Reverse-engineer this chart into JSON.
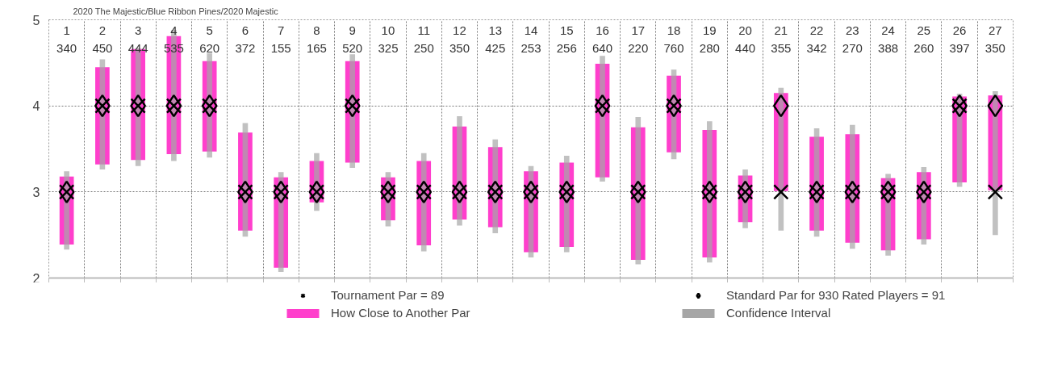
{
  "chart_data": {
    "type": "bar",
    "title": "2020 The Majestic/Blue Ribbon Pines/2020 Majestic",
    "categories": [
      "1\n340",
      "2\n450",
      "3\n444",
      "4\n535",
      "5\n620",
      "6\n372",
      "7\n155",
      "8\n165",
      "9\n520",
      "10\n325",
      "11\n250",
      "12\n350",
      "13\n425",
      "14\n253",
      "15\n256",
      "16\n640",
      "17\n220",
      "18\n760",
      "19\n280",
      "20\n440",
      "21\n355",
      "22\n342",
      "23\n270",
      "24\n388",
      "25\n260",
      "26\n397",
      "27\n350"
    ],
    "series": [
      {
        "name": "How Close to Another Par",
        "color": "#ff3fcc",
        "base": [
          2.39,
          3.32,
          3.37,
          3.44,
          3.47,
          2.55,
          2.12,
          2.88,
          3.34,
          2.67,
          2.38,
          2.68,
          2.59,
          2.3,
          2.36,
          3.17,
          2.21,
          3.46,
          2.24,
          2.65,
          3.01,
          2.55,
          2.41,
          2.32,
          2.45,
          3.11,
          3.02
        ],
        "values": [
          0.79,
          1.13,
          1.29,
          1.37,
          1.05,
          1.14,
          1.05,
          0.48,
          1.18,
          0.5,
          0.98,
          1.08,
          0.93,
          0.94,
          0.98,
          1.32,
          1.54,
          0.89,
          1.48,
          0.54,
          1.14,
          1.09,
          1.26,
          0.84,
          0.78,
          1.0,
          1.1
        ]
      },
      {
        "name": "Confidence Interval",
        "color": "#a6a6a6",
        "base": [
          2.33,
          3.26,
          3.3,
          3.36,
          3.4,
          2.48,
          2.07,
          2.78,
          3.28,
          2.6,
          2.31,
          2.61,
          2.52,
          2.24,
          2.3,
          3.12,
          2.16,
          3.38,
          2.18,
          2.58,
          2.55,
          2.48,
          2.34,
          2.26,
          2.39,
          3.06,
          2.5
        ],
        "values": [
          0.91,
          1.28,
          1.37,
          1.52,
          1.21,
          1.32,
          1.16,
          0.67,
          1.32,
          0.63,
          1.14,
          1.27,
          1.09,
          1.06,
          1.12,
          1.46,
          1.71,
          1.04,
          1.64,
          0.68,
          1.66,
          1.26,
          1.44,
          0.95,
          0.9,
          1.08,
          1.67
        ]
      },
      {
        "name": "Tournament Par = 89",
        "type": "scatter",
        "marker": "cross",
        "color": "#000000",
        "values": [
          3,
          4,
          4,
          4,
          4,
          3,
          3,
          3,
          4,
          3,
          3,
          3,
          3,
          3,
          3,
          4,
          3,
          4,
          3,
          3,
          3,
          3,
          3,
          3,
          3,
          4,
          3
        ]
      },
      {
        "name": "Standard Par for 930 Rated Players = 91",
        "type": "scatter",
        "marker": "diamond",
        "color": "#000000",
        "values": [
          3,
          4,
          4,
          4,
          4,
          3,
          3,
          3,
          4,
          3,
          3,
          3,
          3,
          3,
          3,
          4,
          3,
          4,
          3,
          3,
          4,
          3,
          3,
          3,
          3,
          4,
          4
        ]
      }
    ],
    "ylim": [
      2,
      5
    ],
    "yticks": [
      2,
      3,
      4,
      5
    ],
    "grid": true,
    "legend": "bottom"
  }
}
